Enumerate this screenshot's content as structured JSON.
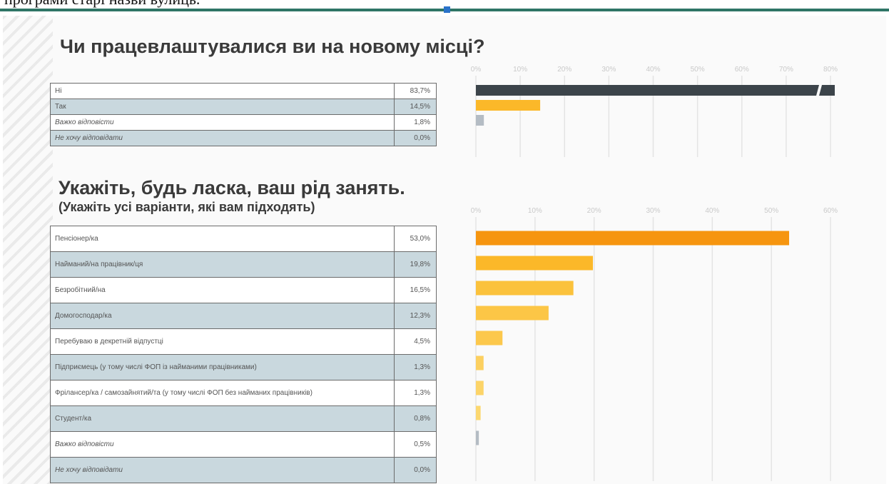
{
  "page": {
    "top_caption": "програми старі назви вулиць."
  },
  "chart_data": [
    {
      "type": "bar",
      "title": "Чи працевлаштувалися ви на новому місці?",
      "categories": [
        "Ні",
        "Так",
        "Важко відповісти",
        "Не хочу відповідати"
      ],
      "values": [
        83.7,
        14.5,
        1.8,
        0.0
      ],
      "value_labels": [
        "83,7%",
        "14,5%",
        "1,8%",
        "0,0%"
      ],
      "italic_rows": [
        2,
        3
      ],
      "xlim": [
        0,
        80
      ],
      "ticks": [
        0,
        10,
        20,
        30,
        40,
        50,
        60,
        70,
        80
      ],
      "tick_labels": [
        "0%",
        "10%",
        "20%",
        "30%",
        "40%",
        "50%",
        "60%",
        "70%",
        "80%"
      ],
      "axis_break": true,
      "colors": [
        "#3c444a",
        "#fbb829",
        "#b4bcc4",
        "#b4bcc4"
      ],
      "grid": true
    },
    {
      "type": "bar",
      "title": "Укажіть, будь ласка, ваш рід занять.",
      "subtitle": "(Укажіть усі варіанти, які вам підходять)",
      "categories": [
        "Пенсіонер/ка",
        "Найманий/на працівник/ця",
        "Безробітний/на",
        "Домогосподар/ка",
        "Перебуваю в декретній відпустці",
        "Підприємець (у тому числі ФОП із найманими працівниками)",
        "Фрілансер/ка / самозайнятий/та (у тому числі ФОП без найманих працівників)",
        "Студент/ка",
        "Важко відповісти",
        "Не хочу відповідати"
      ],
      "values": [
        53.0,
        19.8,
        16.5,
        12.3,
        4.5,
        1.3,
        1.3,
        0.8,
        0.5,
        0.0
      ],
      "value_labels": [
        "53,0%",
        "19,8%",
        "16,5%",
        "12,3%",
        "4,5%",
        "1,3%",
        "1,3%",
        "0,8%",
        "0,5%",
        "0,0%"
      ],
      "italic_rows": [
        8,
        9
      ],
      "xlim": [
        0,
        60
      ],
      "ticks": [
        0,
        10,
        20,
        30,
        40,
        50,
        60
      ],
      "tick_labels": [
        "0%",
        "10%",
        "20%",
        "30%",
        "40%",
        "50%",
        "60%"
      ],
      "colors": [
        "#f6950f",
        "#fbb829",
        "#fbc23c",
        "#fcc646",
        "#fcc84c",
        "#fcd060",
        "#fcd468",
        "#fcd870",
        "#b4bcc4",
        "#b4bcc4"
      ],
      "grid": true
    }
  ]
}
